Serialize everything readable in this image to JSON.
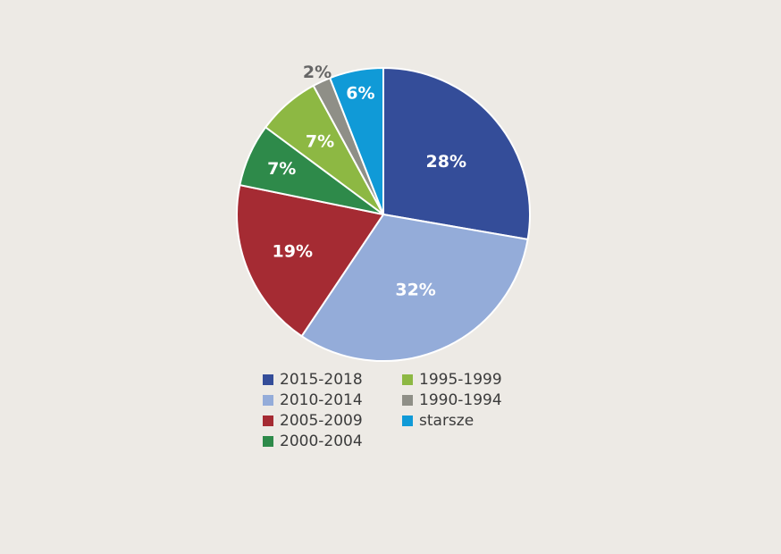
{
  "chart_data": {
    "type": "pie",
    "slices": [
      {
        "label": "2015-2018",
        "value": 28,
        "display": "28%",
        "color": "#344d99",
        "label_color": "#ffffff"
      },
      {
        "label": "2010-2014",
        "value": 32,
        "display": "32%",
        "color": "#94acd9",
        "label_color": "#ffffff"
      },
      {
        "label": "2005-2009",
        "value": 19,
        "display": "19%",
        "color": "#a52b33",
        "label_color": "#ffffff"
      },
      {
        "label": "2000-2004",
        "value": 7,
        "display": "7%",
        "color": "#2e8a4a",
        "label_color": "#ffffff"
      },
      {
        "label": "1995-1999",
        "value": 7,
        "display": "7%",
        "color": "#8db843",
        "label_color": "#ffffff"
      },
      {
        "label": "1990-1994",
        "value": 2,
        "display": "2%",
        "color": "#8f8f87",
        "label_color": "#666666"
      },
      {
        "label": "starsze",
        "value": 6,
        "display": "6%",
        "color": "#109ad7",
        "label_color": "#ffffff"
      }
    ],
    "start_angle": "12 o'clock",
    "direction": "clockwise",
    "legend_position": "bottom"
  }
}
